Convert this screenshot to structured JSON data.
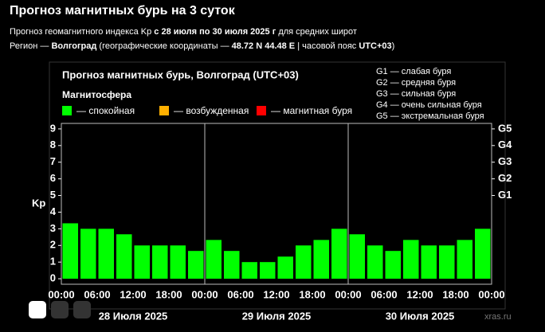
{
  "header": {
    "title": "Прогноз магнитных бурь на 3 суток",
    "line1": [
      {
        "text": "Прогноз геомагнитного индекса Kp ",
        "bold": false
      },
      {
        "text": "с 28 июля по 30 июля 2025 г",
        "bold": true
      },
      {
        "text": " для средних широт",
        "bold": false
      }
    ],
    "line2": [
      {
        "text": "Регион — ",
        "bold": false
      },
      {
        "text": "Волгоград",
        "bold": true
      },
      {
        "text": " (географические координаты — ",
        "bold": false
      },
      {
        "text": "48.72 N 44.48 E",
        "bold": true
      },
      {
        "text": " | часовой пояс ",
        "bold": false
      },
      {
        "text": "UTC+03",
        "bold": true
      },
      {
        "text": ")",
        "bold": false
      }
    ]
  },
  "chart_data": {
    "type": "bar",
    "title": "Прогноз магнитных бурь, Волгоград (UTC+03)",
    "legend_title": "Магнитосфера",
    "legend": [
      {
        "label": "— спокойная",
        "color": "#00ff00"
      },
      {
        "label": "— возбужденная",
        "color": "#ffb000"
      },
      {
        "label": "— магнитная буря",
        "color": "#ff0000"
      }
    ],
    "scale_notes": [
      "G1 — слабая буря",
      "G2 — средняя буря",
      "G3 — сильная буря",
      "G4 — очень сильная буря",
      "G5 — экстремальная буря"
    ],
    "y_label": "Kp",
    "color": "#00ff00",
    "values": [
      3.33,
      3.0,
      3.0,
      2.67,
      2.0,
      2.0,
      2.0,
      1.67,
      2.33,
      1.67,
      1.0,
      1.0,
      1.33,
      2.0,
      2.33,
      3.0,
      2.67,
      2.0,
      1.67,
      2.33,
      2.0,
      2.0,
      2.33,
      3.0
    ],
    "time_labels": [
      "00:00",
      "06:00",
      "12:00",
      "18:00",
      "00:00",
      "06:00",
      "12:00",
      "18:00",
      "00:00",
      "06:00",
      "12:00",
      "18:00",
      "00:00"
    ],
    "days": [
      "28 Июля 2025",
      "29 Июля 2025",
      "30 Июля 2025"
    ],
    "ylim": [
      -0.33,
      9.33
    ],
    "yticks": [
      0,
      1,
      2,
      3,
      4,
      5,
      6,
      7,
      8,
      9
    ],
    "y2ticks": [
      {
        "value": 5,
        "label": "G1"
      },
      {
        "value": 6,
        "label": "G2"
      },
      {
        "value": 7,
        "label": "G3"
      },
      {
        "value": 8,
        "label": "G4"
      },
      {
        "value": 9,
        "label": "G5"
      }
    ]
  },
  "watermark": "xras.ru"
}
